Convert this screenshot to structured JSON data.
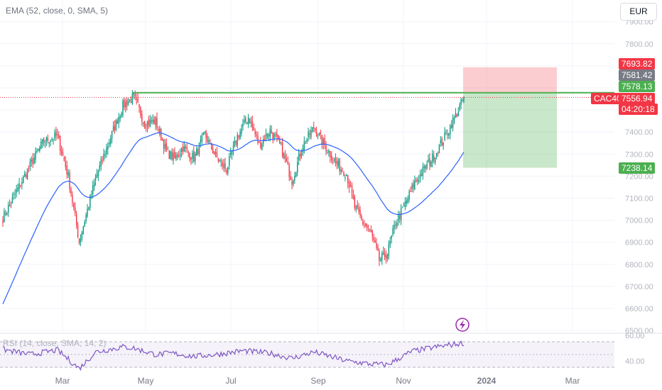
{
  "legend": {
    "ema": "EMA (52, close, 0, SMA, 5)"
  },
  "currency_button": "EUR",
  "symbol": "CAC40",
  "price_tags": {
    "stop": "7693.82",
    "ema_value": "7581.42",
    "resistance": "7578.13",
    "last": "7556.94",
    "countdown": "04:20:18",
    "target": "7238.14"
  },
  "rsi": {
    "legend": "RSI (14, close, SMA, 14, 2)",
    "upper": "60.00",
    "lower": "40.00"
  },
  "colors": {
    "up": "#089981",
    "down": "#f23645",
    "ema": "#2962ff",
    "rsi": "#7e57c2",
    "resistance": "#4caf50"
  },
  "icons": {
    "event": "lightning-icon"
  },
  "chart_data": {
    "type": "candlestick",
    "series": [
      {
        "name": "EMA (52, close, 0, SMA, 5)"
      }
    ],
    "y_axis": {
      "ticks": [
        6500,
        6600,
        6700,
        6800,
        6900,
        7000,
        7100,
        7200,
        7300,
        7400,
        7500,
        7600,
        7700,
        7800,
        7900
      ],
      "range": [
        6500,
        7950
      ]
    },
    "x_axis": {
      "ticks": [
        "Mar",
        "May",
        "Jul",
        "Sep",
        "Nov",
        "2024",
        "Mar"
      ]
    },
    "horizontal_lines": {
      "resistance": 7578.13,
      "last_price": 7556.94
    },
    "risk_reward": {
      "entry": 7578.13,
      "stop": 7693.82,
      "target": 7238.14
    },
    "anchors": [
      [
        0,
        7010
      ],
      [
        10,
        7130
      ],
      [
        20,
        7250
      ],
      [
        30,
        7360
      ],
      [
        40,
        7380
      ],
      [
        48,
        7200
      ],
      [
        56,
        6900
      ],
      [
        60,
        7000
      ],
      [
        68,
        7190
      ],
      [
        78,
        7360
      ],
      [
        88,
        7520
      ],
      [
        96,
        7560
      ],
      [
        104,
        7440
      ],
      [
        112,
        7450
      ],
      [
        120,
        7310
      ],
      [
        126,
        7280
      ],
      [
        132,
        7330
      ],
      [
        140,
        7280
      ],
      [
        148,
        7390
      ],
      [
        156,
        7290
      ],
      [
        164,
        7230
      ],
      [
        172,
        7380
      ],
      [
        180,
        7470
      ],
      [
        188,
        7340
      ],
      [
        196,
        7410
      ],
      [
        204,
        7330
      ],
      [
        212,
        7180
      ],
      [
        220,
        7340
      ],
      [
        228,
        7420
      ],
      [
        236,
        7340
      ],
      [
        244,
        7260
      ],
      [
        252,
        7210
      ],
      [
        258,
        7060
      ],
      [
        264,
        6990
      ],
      [
        270,
        6940
      ],
      [
        276,
        6820
      ],
      [
        282,
        6850
      ],
      [
        288,
        6990
      ],
      [
        294,
        7060
      ],
      [
        302,
        7170
      ],
      [
        310,
        7240
      ],
      [
        318,
        7310
      ],
      [
        326,
        7400
      ],
      [
        334,
        7500
      ],
      [
        338,
        7557
      ]
    ],
    "rsi_anchors": [
      [
        0,
        58
      ],
      [
        20,
        50
      ],
      [
        40,
        57
      ],
      [
        56,
        28
      ],
      [
        68,
        54
      ],
      [
        88,
        62
      ],
      [
        96,
        60
      ],
      [
        112,
        50
      ],
      [
        124,
        52
      ],
      [
        140,
        47
      ],
      [
        156,
        50
      ],
      [
        176,
        56
      ],
      [
        196,
        52
      ],
      [
        212,
        44
      ],
      [
        228,
        54
      ],
      [
        252,
        40
      ],
      [
        270,
        35
      ],
      [
        282,
        34
      ],
      [
        300,
        55
      ],
      [
        318,
        62
      ],
      [
        338,
        68
      ]
    ]
  }
}
